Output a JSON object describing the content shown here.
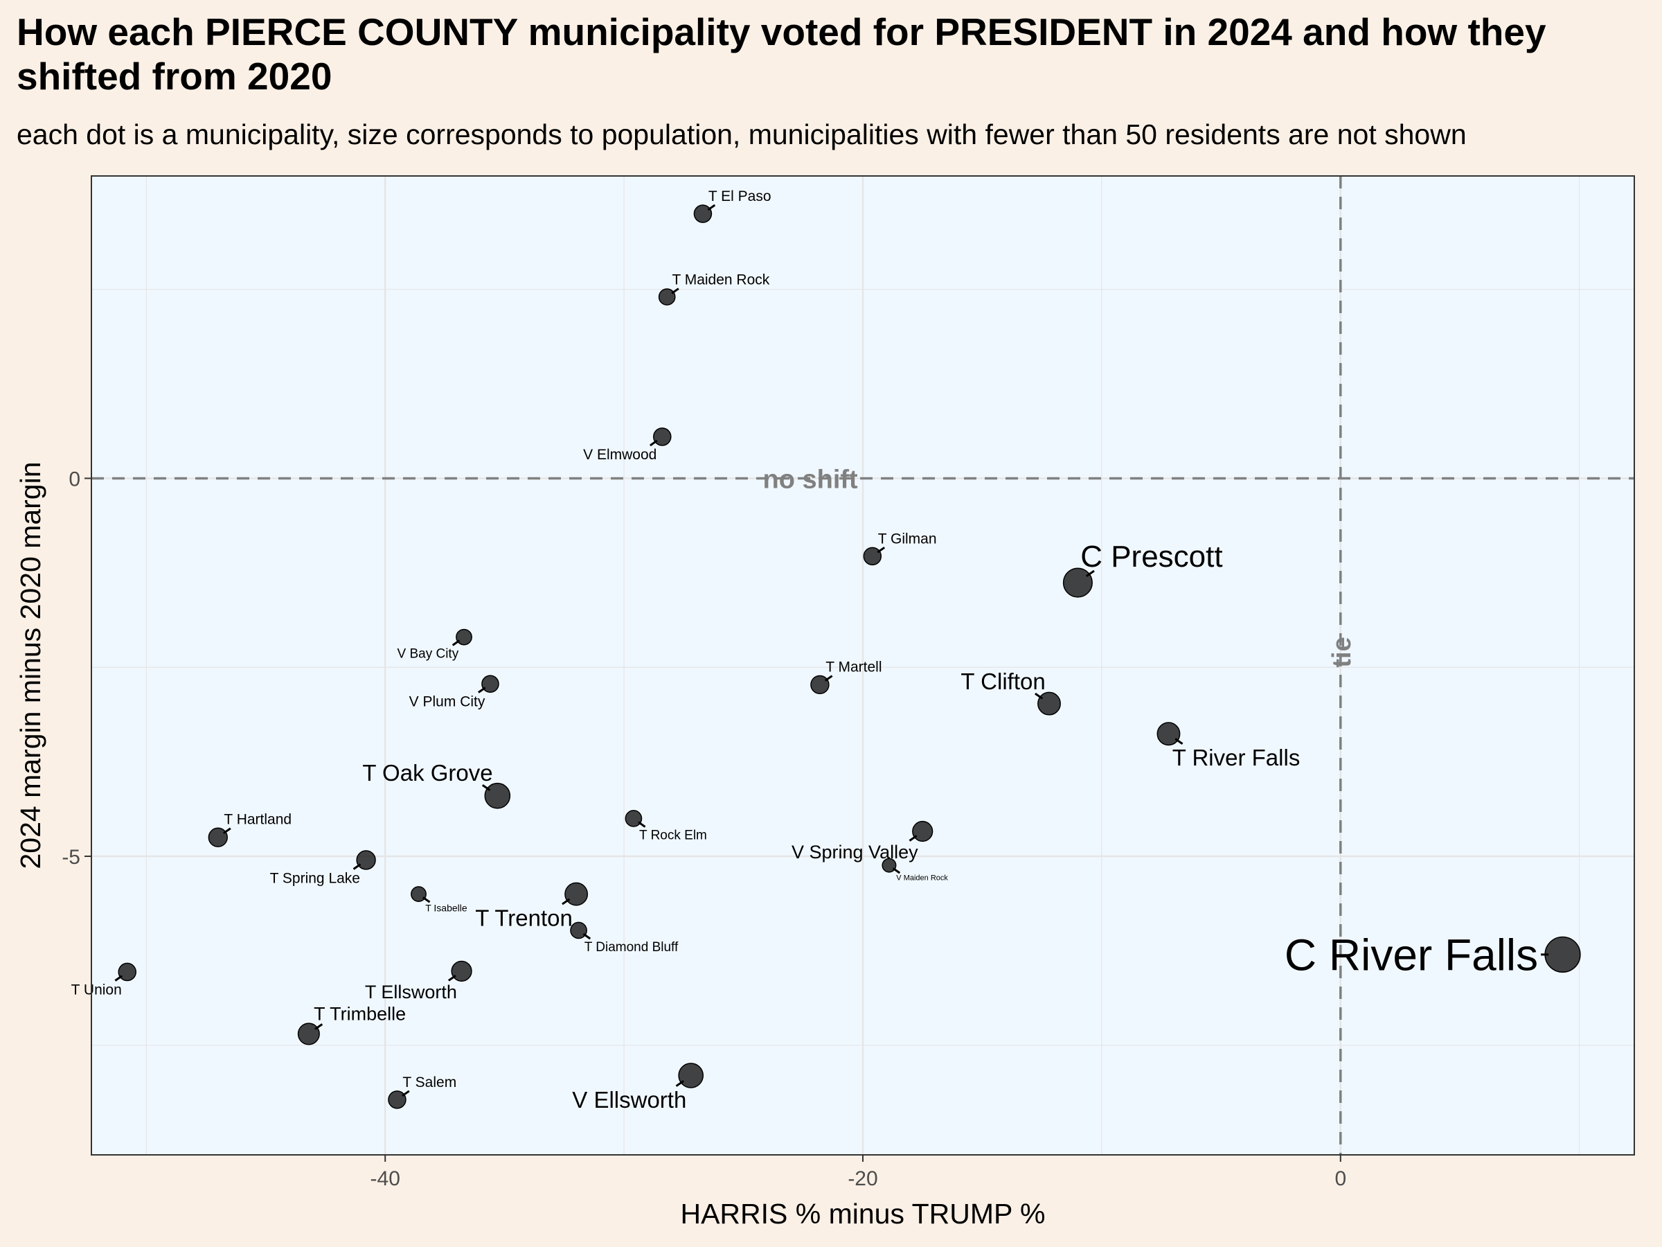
{
  "title": "How each PIERCE COUNTY municipality voted for PRESIDENT in 2024 and how they shifted from 2020",
  "subtitle": "each dot is a municipality, size corresponds to population, municipalities with fewer than 50 residents are not shown",
  "colors": {
    "page_background": "#faf0e6",
    "panel_background": "#f0f8ff",
    "grid": "#e5e5e5",
    "point": "#1a1a1a",
    "reference_line": "#808080"
  },
  "chart_data": {
    "type": "scatter",
    "xlabel": "HARRIS % minus TRUMP %",
    "ylabel": "2024 margin minus 2020 margin",
    "xlim": [
      -52.3,
      12.3
    ],
    "ylim": [
      -8.95,
      4.0
    ],
    "x_ticks": [
      -40,
      -20,
      0
    ],
    "y_ticks": [
      0,
      -5
    ],
    "x_tick_labels": [
      "-40",
      "-20",
      "0"
    ],
    "y_tick_labels": [
      "0",
      "-5"
    ],
    "grid": true,
    "reference_lines": [
      {
        "axis": "y",
        "value": 0,
        "label": "no shift",
        "style": "dashed"
      },
      {
        "axis": "x",
        "value": 0,
        "label": "tie",
        "style": "dashed"
      }
    ],
    "points": [
      {
        "name": "T El Paso",
        "x": -26.7,
        "y": 3.5,
        "size": 1.2,
        "label_pos": "upper-right",
        "label_size": "small"
      },
      {
        "name": "T Maiden Rock",
        "x": -28.2,
        "y": 2.4,
        "size": 1.0,
        "label_pos": "upper-right",
        "label_size": "small"
      },
      {
        "name": "V Elmwood",
        "x": -28.4,
        "y": 0.55,
        "size": 1.2,
        "label_pos": "lower-left",
        "label_size": "small"
      },
      {
        "name": "T Gilman",
        "x": -19.6,
        "y": -1.03,
        "size": 1.2,
        "label_pos": "upper-right",
        "label_size": "small"
      },
      {
        "name": "C Prescott",
        "x": -11.0,
        "y": -1.38,
        "size": 3.0,
        "label_pos": "upper-right",
        "label_size": "large"
      },
      {
        "name": "V Bay City",
        "x": -36.7,
        "y": -2.1,
        "size": 0.9,
        "label_pos": "lower-left",
        "label_size": "tiny"
      },
      {
        "name": "T Martell",
        "x": -21.8,
        "y": -2.73,
        "size": 1.3,
        "label_pos": "upper-right",
        "label_size": "small"
      },
      {
        "name": "T Clifton",
        "x": -12.2,
        "y": -2.98,
        "size": 2.0,
        "label_pos": "upper-left",
        "label_size": "medium"
      },
      {
        "name": "V Plum City",
        "x": -35.6,
        "y": -2.72,
        "size": 1.1,
        "label_pos": "lower-left",
        "label_size": "small"
      },
      {
        "name": "T River Falls",
        "x": -7.2,
        "y": -3.38,
        "size": 2.0,
        "label_pos": "lower-right",
        "label_size": "medium"
      },
      {
        "name": "T Oak Grove",
        "x": -35.3,
        "y": -4.2,
        "size": 2.4,
        "label_pos": "upper-left",
        "label_size": "medium"
      },
      {
        "name": "T Hartland",
        "x": -47.0,
        "y": -4.75,
        "size": 1.4,
        "label_pos": "upper-right",
        "label_size": "small"
      },
      {
        "name": "T Rock Elm",
        "x": -29.6,
        "y": -4.5,
        "size": 1.0,
        "label_pos": "lower-right",
        "label_size": "tiny"
      },
      {
        "name": "V Spring Valley",
        "x": -17.5,
        "y": -4.67,
        "size": 1.6,
        "label_pos": "lower-left",
        "label_size": "medium-small"
      },
      {
        "name": "T Spring Lake",
        "x": -40.8,
        "y": -5.05,
        "size": 1.4,
        "label_pos": "lower-left",
        "label_size": "small"
      },
      {
        "name": "V Maiden Rock",
        "x": -18.9,
        "y": -5.12,
        "size": 0.6,
        "label_pos": "lower-right",
        "label_size": "micro"
      },
      {
        "name": "T Isabelle",
        "x": -38.6,
        "y": -5.5,
        "size": 0.8,
        "label_pos": "lower-right",
        "label_size": "micro-small"
      },
      {
        "name": "T Trenton",
        "x": -32.0,
        "y": -5.5,
        "size": 2.0,
        "label_pos": "lower-left",
        "label_size": "medium"
      },
      {
        "name": "T Diamond Bluff",
        "x": -31.9,
        "y": -5.98,
        "size": 1.0,
        "label_pos": "lower-right",
        "label_size": "tiny"
      },
      {
        "name": "C River Falls",
        "x": 9.3,
        "y": -6.3,
        "size": 4.0,
        "label_pos": "left",
        "label_size": "huge"
      },
      {
        "name": "T Union",
        "x": -50.8,
        "y": -6.53,
        "size": 1.2,
        "label_pos": "lower-left",
        "label_size": "small"
      },
      {
        "name": "T Ellsworth",
        "x": -36.8,
        "y": -6.52,
        "size": 1.6,
        "label_pos": "lower-left",
        "label_size": "medium-small"
      },
      {
        "name": "T Trimbelle",
        "x": -43.2,
        "y": -7.35,
        "size": 1.8,
        "label_pos": "upper-right",
        "label_size": "medium-small"
      },
      {
        "name": "V Ellsworth",
        "x": -27.2,
        "y": -7.9,
        "size": 2.3,
        "label_pos": "lower-left",
        "label_size": "medium"
      },
      {
        "name": "T Salem",
        "x": -39.5,
        "y": -8.22,
        "size": 1.2,
        "label_pos": "upper-right",
        "label_size": "small"
      }
    ]
  }
}
